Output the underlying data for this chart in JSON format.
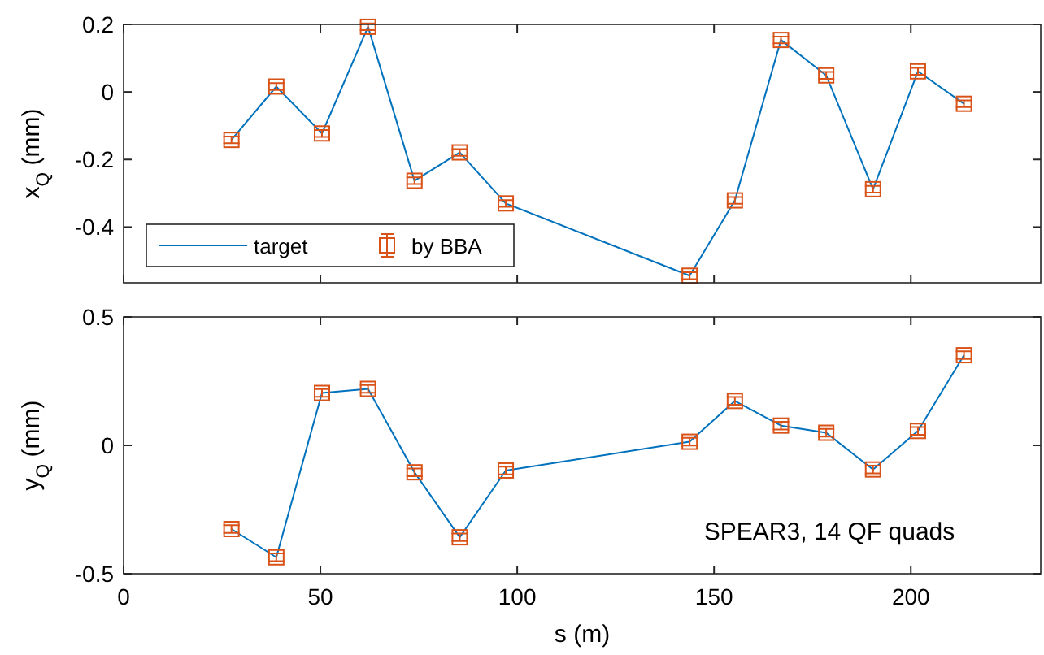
{
  "chart_data": [
    {
      "type": "line",
      "ylabel": "x$_{Q}$ (mm)",
      "x": [
        27.4,
        38.8,
        50.4,
        62.1,
        73.9,
        85.4,
        97.1,
        143.8,
        155.3,
        167,
        178.5,
        190.4,
        201.8,
        213.5
      ],
      "xlim": [
        0,
        233
      ],
      "xticks": [
        0,
        50,
        100,
        150,
        200
      ],
      "ylim": [
        -0.565,
        0.2
      ],
      "yticks": [
        {
          "value": 0.2,
          "label": "0.2"
        },
        0,
        {
          "value": -0.2,
          "label": "-0.2"
        },
        {
          "value": -0.4,
          "label": "-0.4"
        }
      ],
      "tick_labels": "y",
      "grid": false,
      "legend": "bottom left",
      "series": [
        {
          "name": "target",
          "type": "line",
          "color": "#0072bd",
          "marker": "none",
          "line_style": "solid",
          "values": [
            -0.142,
            0.016,
            -0.123,
            0.193,
            -0.263,
            -0.179,
            -0.33,
            -0.544,
            -0.321,
            0.154,
            0.049,
            -0.288,
            0.061,
            -0.035
          ]
        },
        {
          "name": "by BBA",
          "type": "scatter",
          "color": "#d95319",
          "marker": "square",
          "values": [
            -0.142,
            0.016,
            -0.123,
            0.193,
            -0.263,
            -0.179,
            -0.33,
            -0.544,
            -0.321,
            0.154,
            0.049,
            -0.288,
            0.061,
            -0.035
          ],
          "errors": [
            0.01,
            0.01,
            0.01,
            0.01,
            0.01,
            0.01,
            0.01,
            0.01,
            0.01,
            0.01,
            0.01,
            0.01,
            0.01,
            0.01
          ]
        }
      ]
    },
    {
      "type": "line",
      "xlabel": "s (m)",
      "ylabel": "y$_{Q}$ (mm)",
      "x": [
        27.4,
        38.8,
        50.4,
        62.1,
        73.9,
        85.4,
        97.1,
        143.8,
        155.3,
        167,
        178.5,
        190.4,
        201.8,
        213.5
      ],
      "xlim": [
        0,
        233
      ],
      "xticks": [
        0,
        50,
        100,
        150,
        200
      ],
      "ylim": [
        -0.5,
        0.5
      ],
      "yticks": [
        {
          "value": -0.5,
          "label": "-0.5"
        },
        0,
        {
          "value": 0.5,
          "label": "0.5"
        }
      ],
      "grid": false,
      "legend": false,
      "annotations": [
        "SPEAR3, 14 QF quads"
      ],
      "series": [
        {
          "type": "line",
          "color": "#0072bd",
          "marker": "none",
          "line_style": "solid",
          "values": [
            -0.326,
            -0.436,
            0.204,
            0.22,
            -0.105,
            -0.358,
            -0.098,
            0.014,
            0.173,
            0.077,
            0.049,
            -0.094,
            0.056,
            0.351
          ]
        },
        {
          "type": "scatter",
          "color": "#d95319",
          "marker": "square",
          "values": [
            -0.326,
            -0.436,
            0.204,
            0.22,
            -0.105,
            -0.358,
            -0.098,
            0.014,
            0.173,
            0.077,
            0.049,
            -0.094,
            0.056,
            0.351
          ],
          "errors": [
            0.015,
            0.015,
            0.015,
            0.015,
            0.015,
            0.015,
            0.015,
            0.015,
            0.015,
            0.015,
            0.015,
            0.015,
            0.015,
            0.015
          ]
        }
      ]
    }
  ]
}
